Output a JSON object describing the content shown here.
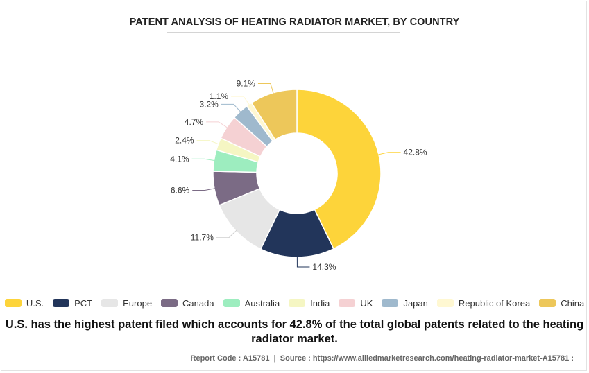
{
  "title": "PATENT ANALYSIS OF HEATING RADIATOR MARKET, BY COUNTRY",
  "summary": "U.S. has the highest patent filed which accounts for 42.8% of the total global patents related to the heating radiator market.",
  "source": {
    "report_code_label": "Report Code : A15781",
    "separator": "|",
    "source_text": "Source : https://www.alliedmarketresearch.com/heating-radiator-market-A15781 :"
  },
  "chart_data": {
    "type": "donut",
    "title": "PATENT ANALYSIS OF HEATING RADIATOR MARKET, BY COUNTRY",
    "unit": "%",
    "legend_position": "bottom",
    "slices": [
      {
        "name": "U.S.",
        "value": 42.8,
        "label": "42.8%",
        "color": "#FDD43A"
      },
      {
        "name": "PCT",
        "value": 14.3,
        "label": "14.3%",
        "color": "#22355A"
      },
      {
        "name": "Europe",
        "value": 11.7,
        "label": "11.7%",
        "color": "#E6E6E6"
      },
      {
        "name": "Canada",
        "value": 6.6,
        "label": "6.6%",
        "color": "#7B6B85"
      },
      {
        "name": "Australia",
        "value": 4.1,
        "label": "4.1%",
        "color": "#9DEDBF"
      },
      {
        "name": "India",
        "value": 2.4,
        "label": "2.4%",
        "color": "#F5F6C3"
      },
      {
        "name": "UK",
        "value": 4.7,
        "label": "4.7%",
        "color": "#F5D1D3"
      },
      {
        "name": "Japan",
        "value": 3.2,
        "label": "3.2%",
        "color": "#9FB9CD"
      },
      {
        "name": "Republic of Korea",
        "value": 1.1,
        "label": "1.1%",
        "color": "#FFF8D2"
      },
      {
        "name": "China",
        "value": 9.1,
        "label": "9.1%",
        "color": "#EDC75A"
      }
    ]
  }
}
